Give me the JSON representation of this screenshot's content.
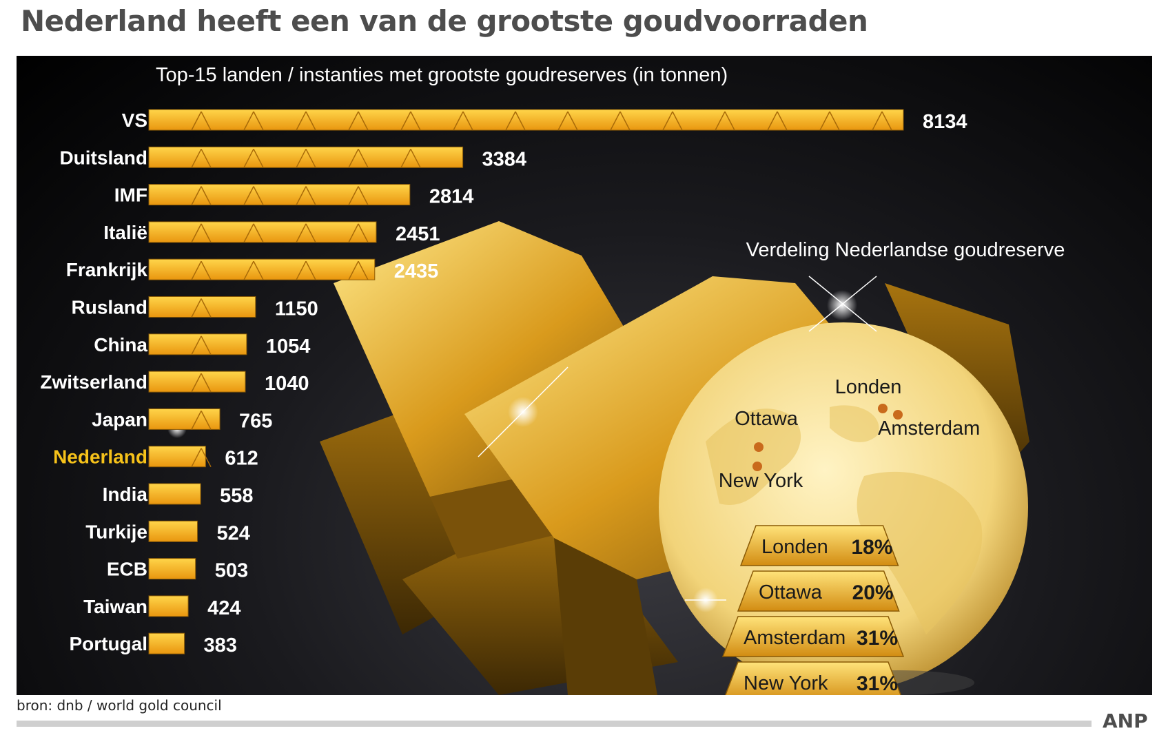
{
  "headline": "Nederland heeft een van de grootste goudvoorraden",
  "source": "bron: dnb / world gold council",
  "agency": "ANP",
  "colors": {
    "gold": "#f4a81e",
    "gold_light": "#ffd24f",
    "highlight_label": "#f6c21a",
    "label": "#ffffff",
    "panel": "#0a0a0c"
  },
  "chart_data": [
    {
      "type": "bar",
      "orientation": "horizontal",
      "title": "Top-15 landen / instanties  met grootste goudreserves (in tonnen)",
      "categories": [
        "VS",
        "Duitsland",
        "IMF",
        "Italië",
        "Frankrijk",
        "Rusland",
        "China",
        "Zwitserland",
        "Japan",
        "Nederland",
        "India",
        "Turkije",
        "ECB",
        "Taiwan",
        "Portugal"
      ],
      "values": [
        8134,
        3384,
        2814,
        2451,
        2435,
        1150,
        1054,
        1040,
        765,
        612,
        558,
        524,
        503,
        424,
        383
      ],
      "value_labels": [
        "8134",
        "3384",
        "2814",
        "2451",
        "2435",
        "1150",
        "1054",
        "1040",
        "765",
        "612",
        "558",
        "524",
        "503",
        "424",
        "383"
      ],
      "highlighted_category": "Nederland",
      "unit": "tonnen",
      "bar_icon": "gold-bar-icon"
    },
    {
      "type": "table",
      "title": "Verdeling Nederlandse goudreserve",
      "map_labels": [
        "Londen",
        "Amsterdam",
        "Ottawa",
        "New York"
      ],
      "categories": [
        "Londen",
        "Ottawa",
        "Amsterdam",
        "New York"
      ],
      "values": [
        18,
        20,
        31,
        31
      ],
      "value_labels": [
        "18%",
        "20%",
        "31%",
        "31%"
      ],
      "unit": "%"
    }
  ]
}
